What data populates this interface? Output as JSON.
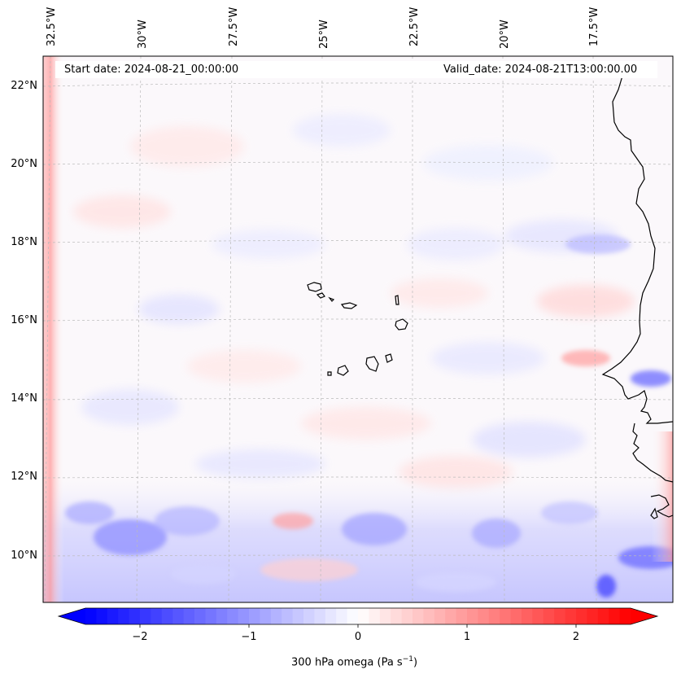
{
  "map": {
    "start_date": "Start date: 2024-08-21_00:00:00",
    "valid_date": "Valid_date: 2024-08-21T13:00:00.00",
    "lon_labels": [
      "32.5°W",
      "30°W",
      "27.5°W",
      "25°W",
      "22.5°W",
      "20°W",
      "17.5°W"
    ],
    "lat_labels": [
      "22°N",
      "20°N",
      "18°N",
      "16°N",
      "14°N",
      "12°N",
      "10°N"
    ],
    "coastline_color": "#000000",
    "gridline_color": "#bbbbbb"
  },
  "colorbar": {
    "label_main": "300 hPa omega (Pa s",
    "label_sup": "−1",
    "label_end": ")",
    "tick_labels": [
      "−2",
      "−1",
      "0",
      "1",
      "2"
    ],
    "range": [
      -2.6,
      2.6
    ],
    "colormap": "bwr",
    "color_min": "#0000ff",
    "color_mid": "#ffffff",
    "color_max": "#ff0000"
  }
}
